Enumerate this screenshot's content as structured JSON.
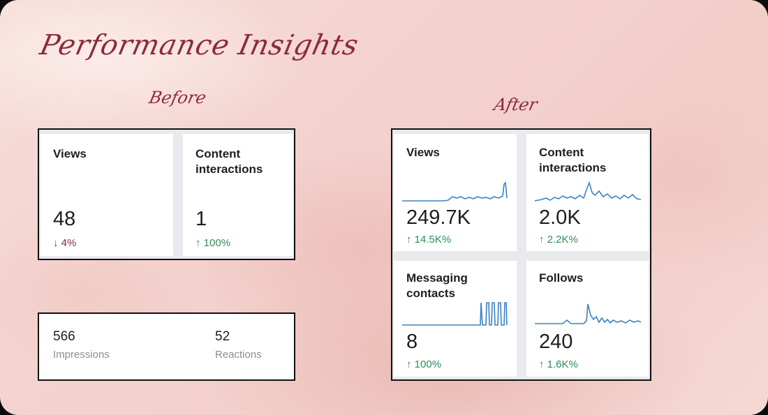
{
  "title": "Performance Insights",
  "before": {
    "label": "Before",
    "cards": [
      {
        "label": "Views",
        "value": "48",
        "change": "↓ 4%",
        "trend": "down"
      },
      {
        "label": "Content interactions",
        "value": "1",
        "change": "↑ 100%",
        "trend": "up"
      }
    ],
    "stats": [
      {
        "value": "566",
        "label": "Impressions"
      },
      {
        "value": "52",
        "label": "Reactions"
      }
    ]
  },
  "after": {
    "label": "After",
    "cards": [
      {
        "label": "Views",
        "value": "249.7K",
        "change": "↑ 14.5K%",
        "trend": "up"
      },
      {
        "label": "Content interactions",
        "value": "2.0K",
        "change": "↑ 2.2K%",
        "trend": "up"
      },
      {
        "label": "Messaging contacts",
        "value": "8",
        "change": "↑ 100%",
        "trend": "up"
      },
      {
        "label": "Follows",
        "value": "240",
        "change": "↑ 1.6K%",
        "trend": "up"
      }
    ]
  },
  "colors": {
    "accent": "#8c2a3c",
    "up": "#2e8b5c",
    "sparkline": "#3b82c4"
  }
}
